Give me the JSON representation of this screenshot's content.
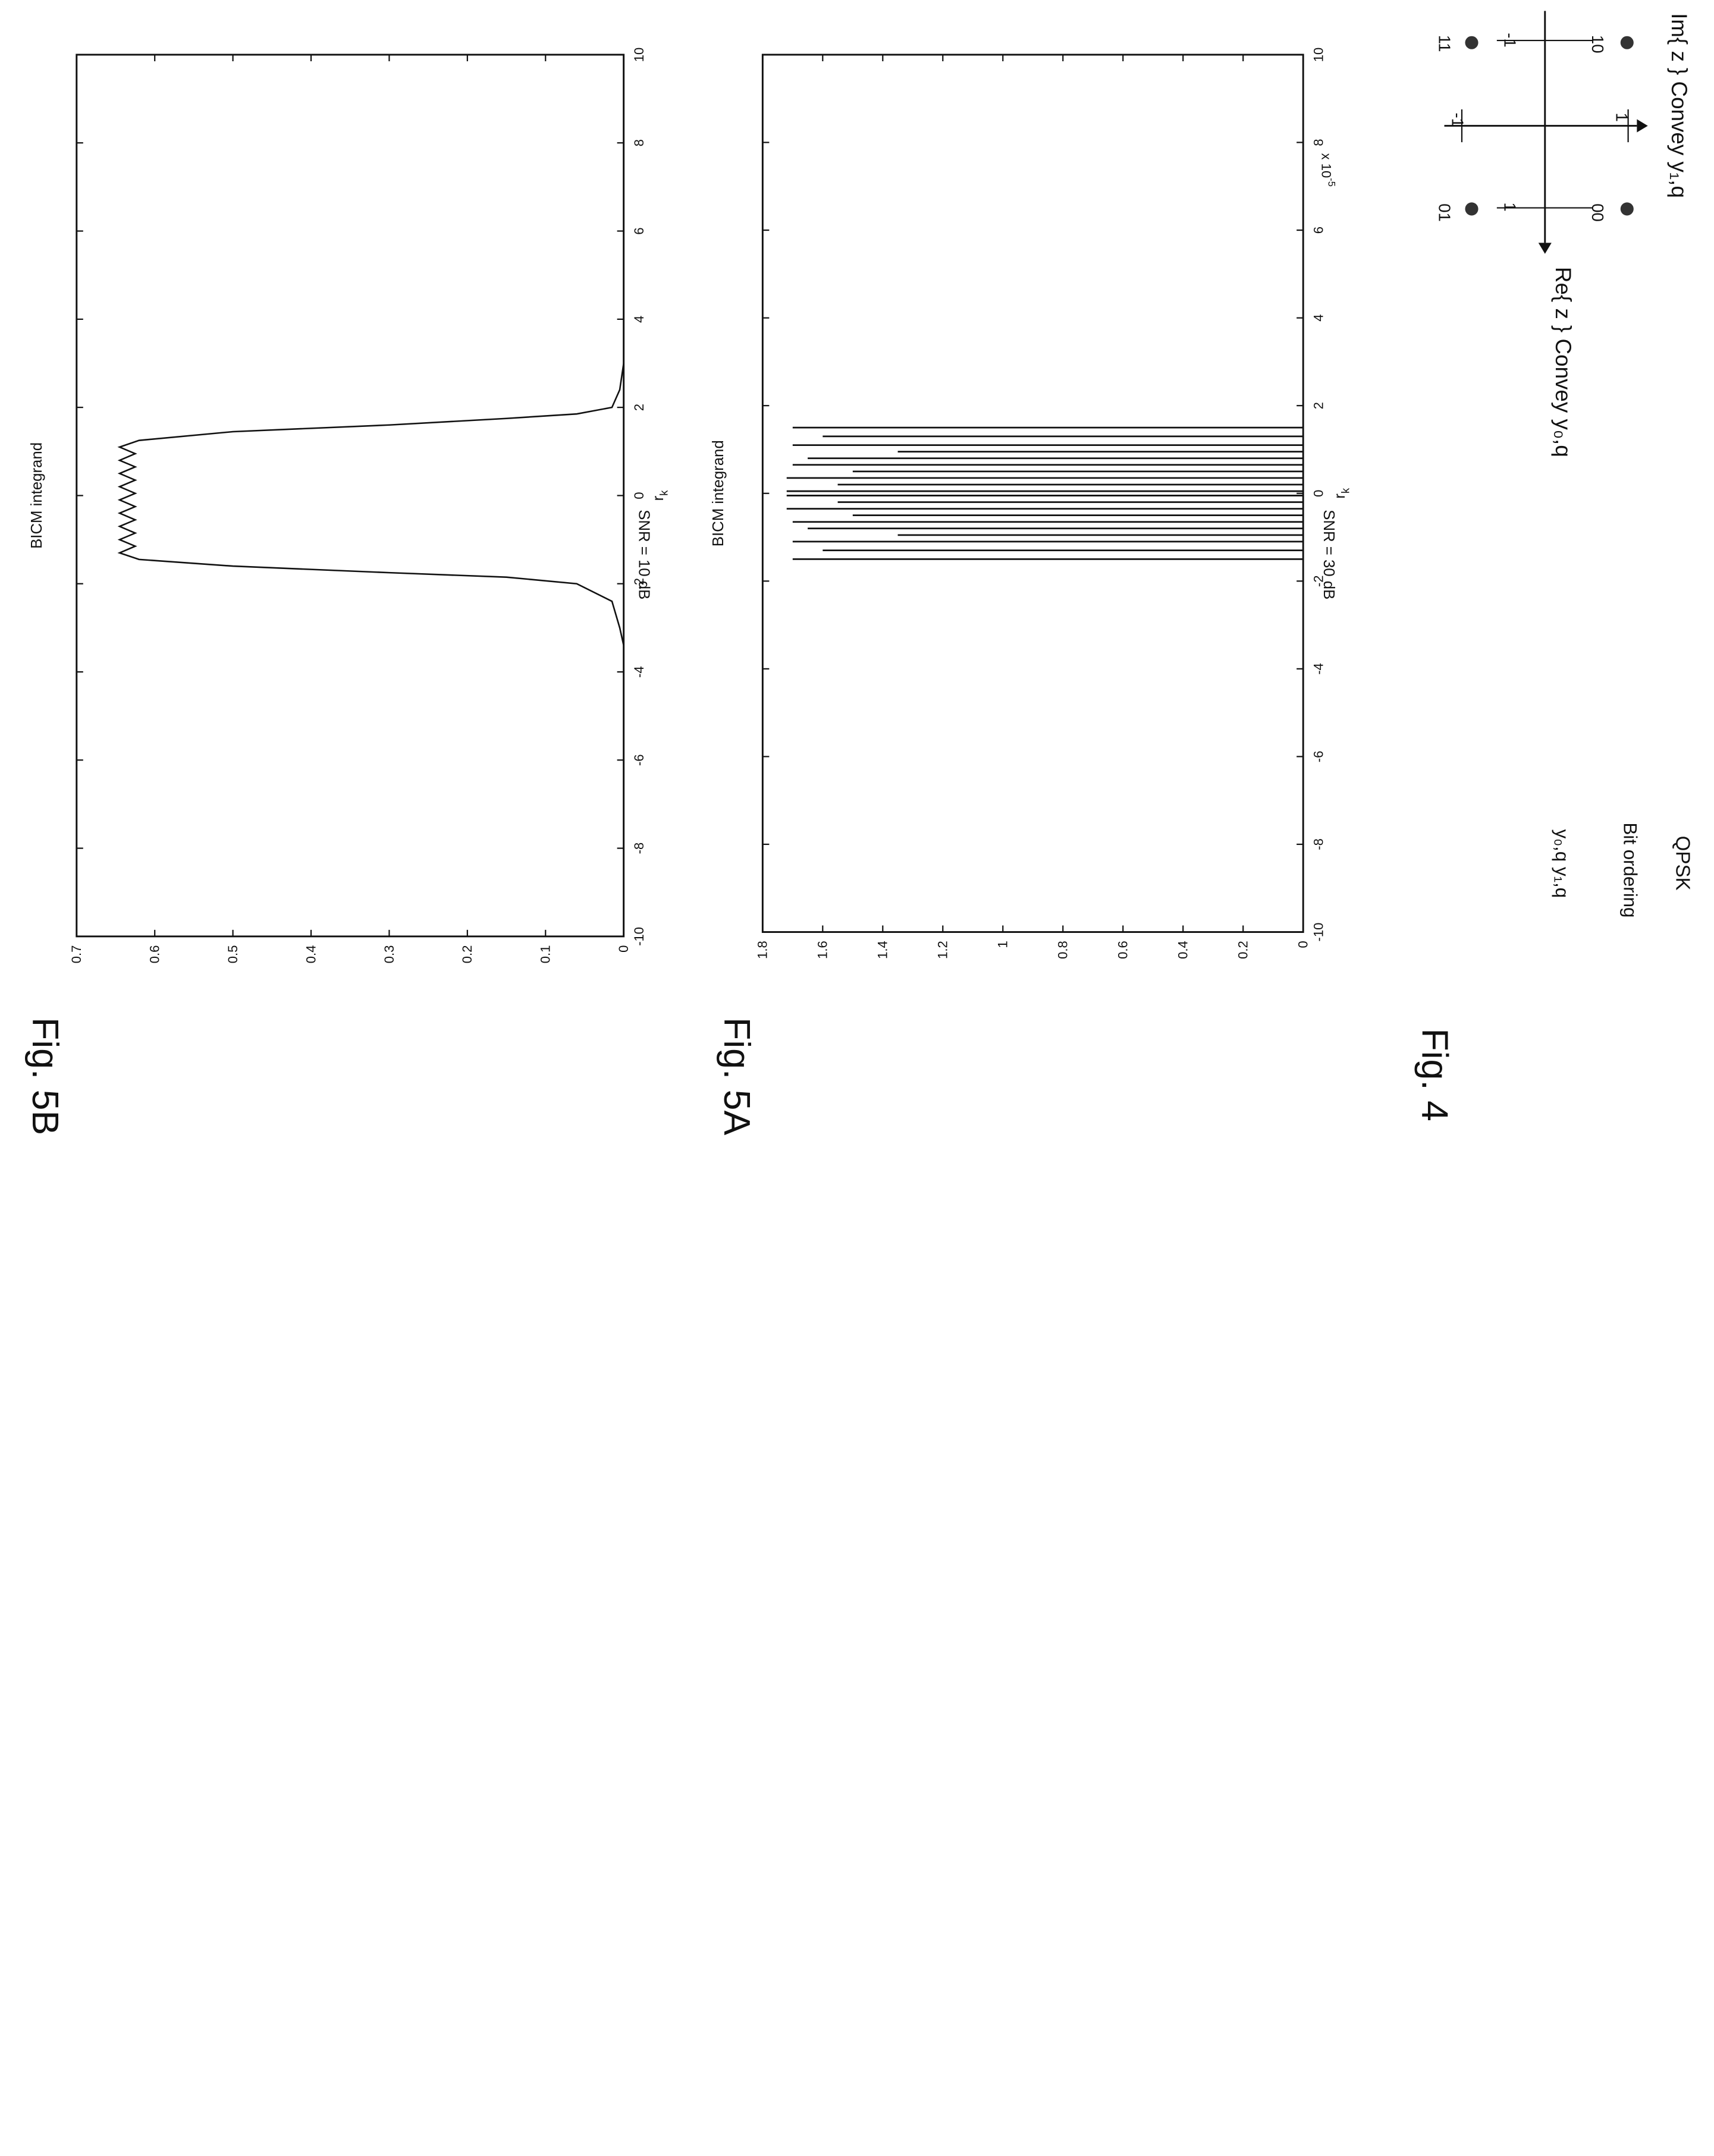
{
  "fig4": {
    "caption": "Fig. 4",
    "title": "QPSK",
    "subtitle": "Bit ordering",
    "bit_order_label": "y₀,q y₁,q",
    "im_axis_label": "Im{ z } Convey y₁,q",
    "re_axis_label": "Re{ z } Convey y₀,q",
    "tick_labels": [
      "1",
      "-1",
      "1",
      "-1"
    ],
    "points": [
      {
        "label": "10",
        "re": -1,
        "im": 1
      },
      {
        "label": "00",
        "re": 1,
        "im": 1
      },
      {
        "label": "11",
        "re": -1,
        "im": -1
      },
      {
        "label": "01",
        "re": 1,
        "im": -1
      }
    ]
  },
  "chart_data": [
    {
      "type": "line",
      "caption": "Fig. 5A",
      "title": "SNR = 30 dB",
      "xlabel": "r_k",
      "ylabel": "BICM integrand",
      "y_multiplier": "x 10^-5",
      "xlim": [
        -10,
        10
      ],
      "ylim": [
        0,
        1.8
      ],
      "xticks": [
        "-10",
        "-8",
        "-6",
        "-4",
        "-2",
        "0",
        "2",
        "4",
        "6",
        "8",
        "10"
      ],
      "yticks": [
        "0",
        "0.2",
        "0.4",
        "0.6",
        "0.8",
        "1",
        "1.2",
        "1.4",
        "1.6",
        "1.8"
      ],
      "grid": false,
      "spikes_x": [
        -1.5,
        -1.3,
        -1.1,
        -0.95,
        -0.8,
        -0.65,
        -0.5,
        -0.35,
        -0.2,
        -0.05,
        0.05,
        0.2,
        0.35,
        0.5,
        0.65,
        0.8,
        0.95,
        1.1,
        1.3,
        1.5
      ],
      "spikes_y": [
        1.7,
        1.6,
        1.7,
        1.35,
        1.65,
        1.7,
        1.5,
        1.72,
        1.55,
        1.72,
        1.72,
        1.55,
        1.72,
        1.5,
        1.7,
        1.65,
        1.35,
        1.7,
        1.6,
        1.7
      ]
    },
    {
      "type": "line",
      "caption": "Fig. 5B",
      "title": "SNR = 10 dB",
      "xlabel": "r_k",
      "ylabel": "BICM integrand",
      "xlim": [
        -10,
        10
      ],
      "ylim": [
        0,
        0.7
      ],
      "xticks": [
        "-10",
        "-8",
        "-6",
        "-4",
        "-2",
        "0",
        "2",
        "4",
        "6",
        "8",
        "10"
      ],
      "yticks": [
        "0",
        "0.1",
        "0.2",
        "0.3",
        "0.4",
        "0.5",
        "0.6",
        "0.7"
      ],
      "grid": false,
      "x": [
        -10,
        -3.4,
        -3.0,
        -2.4,
        -2.0,
        -1.85,
        -1.75,
        -1.6,
        -1.45,
        -1.3,
        -1.15,
        -1.0,
        -0.85,
        -0.7,
        -0.55,
        -0.4,
        -0.25,
        -0.1,
        0.05,
        0.2,
        0.35,
        0.5,
        0.65,
        0.8,
        0.95,
        1.1,
        1.25,
        1.45,
        1.6,
        1.75,
        1.85,
        2.0,
        2.4,
        3.0,
        3.4,
        10
      ],
      "y": [
        0,
        0.0,
        0.005,
        0.015,
        0.06,
        0.15,
        0.3,
        0.5,
        0.62,
        0.645,
        0.625,
        0.645,
        0.625,
        0.645,
        0.625,
        0.645,
        0.625,
        0.645,
        0.625,
        0.645,
        0.625,
        0.645,
        0.625,
        0.645,
        0.625,
        0.645,
        0.62,
        0.5,
        0.3,
        0.15,
        0.06,
        0.015,
        0.005,
        0.0,
        0.0,
        0
      ]
    }
  ]
}
